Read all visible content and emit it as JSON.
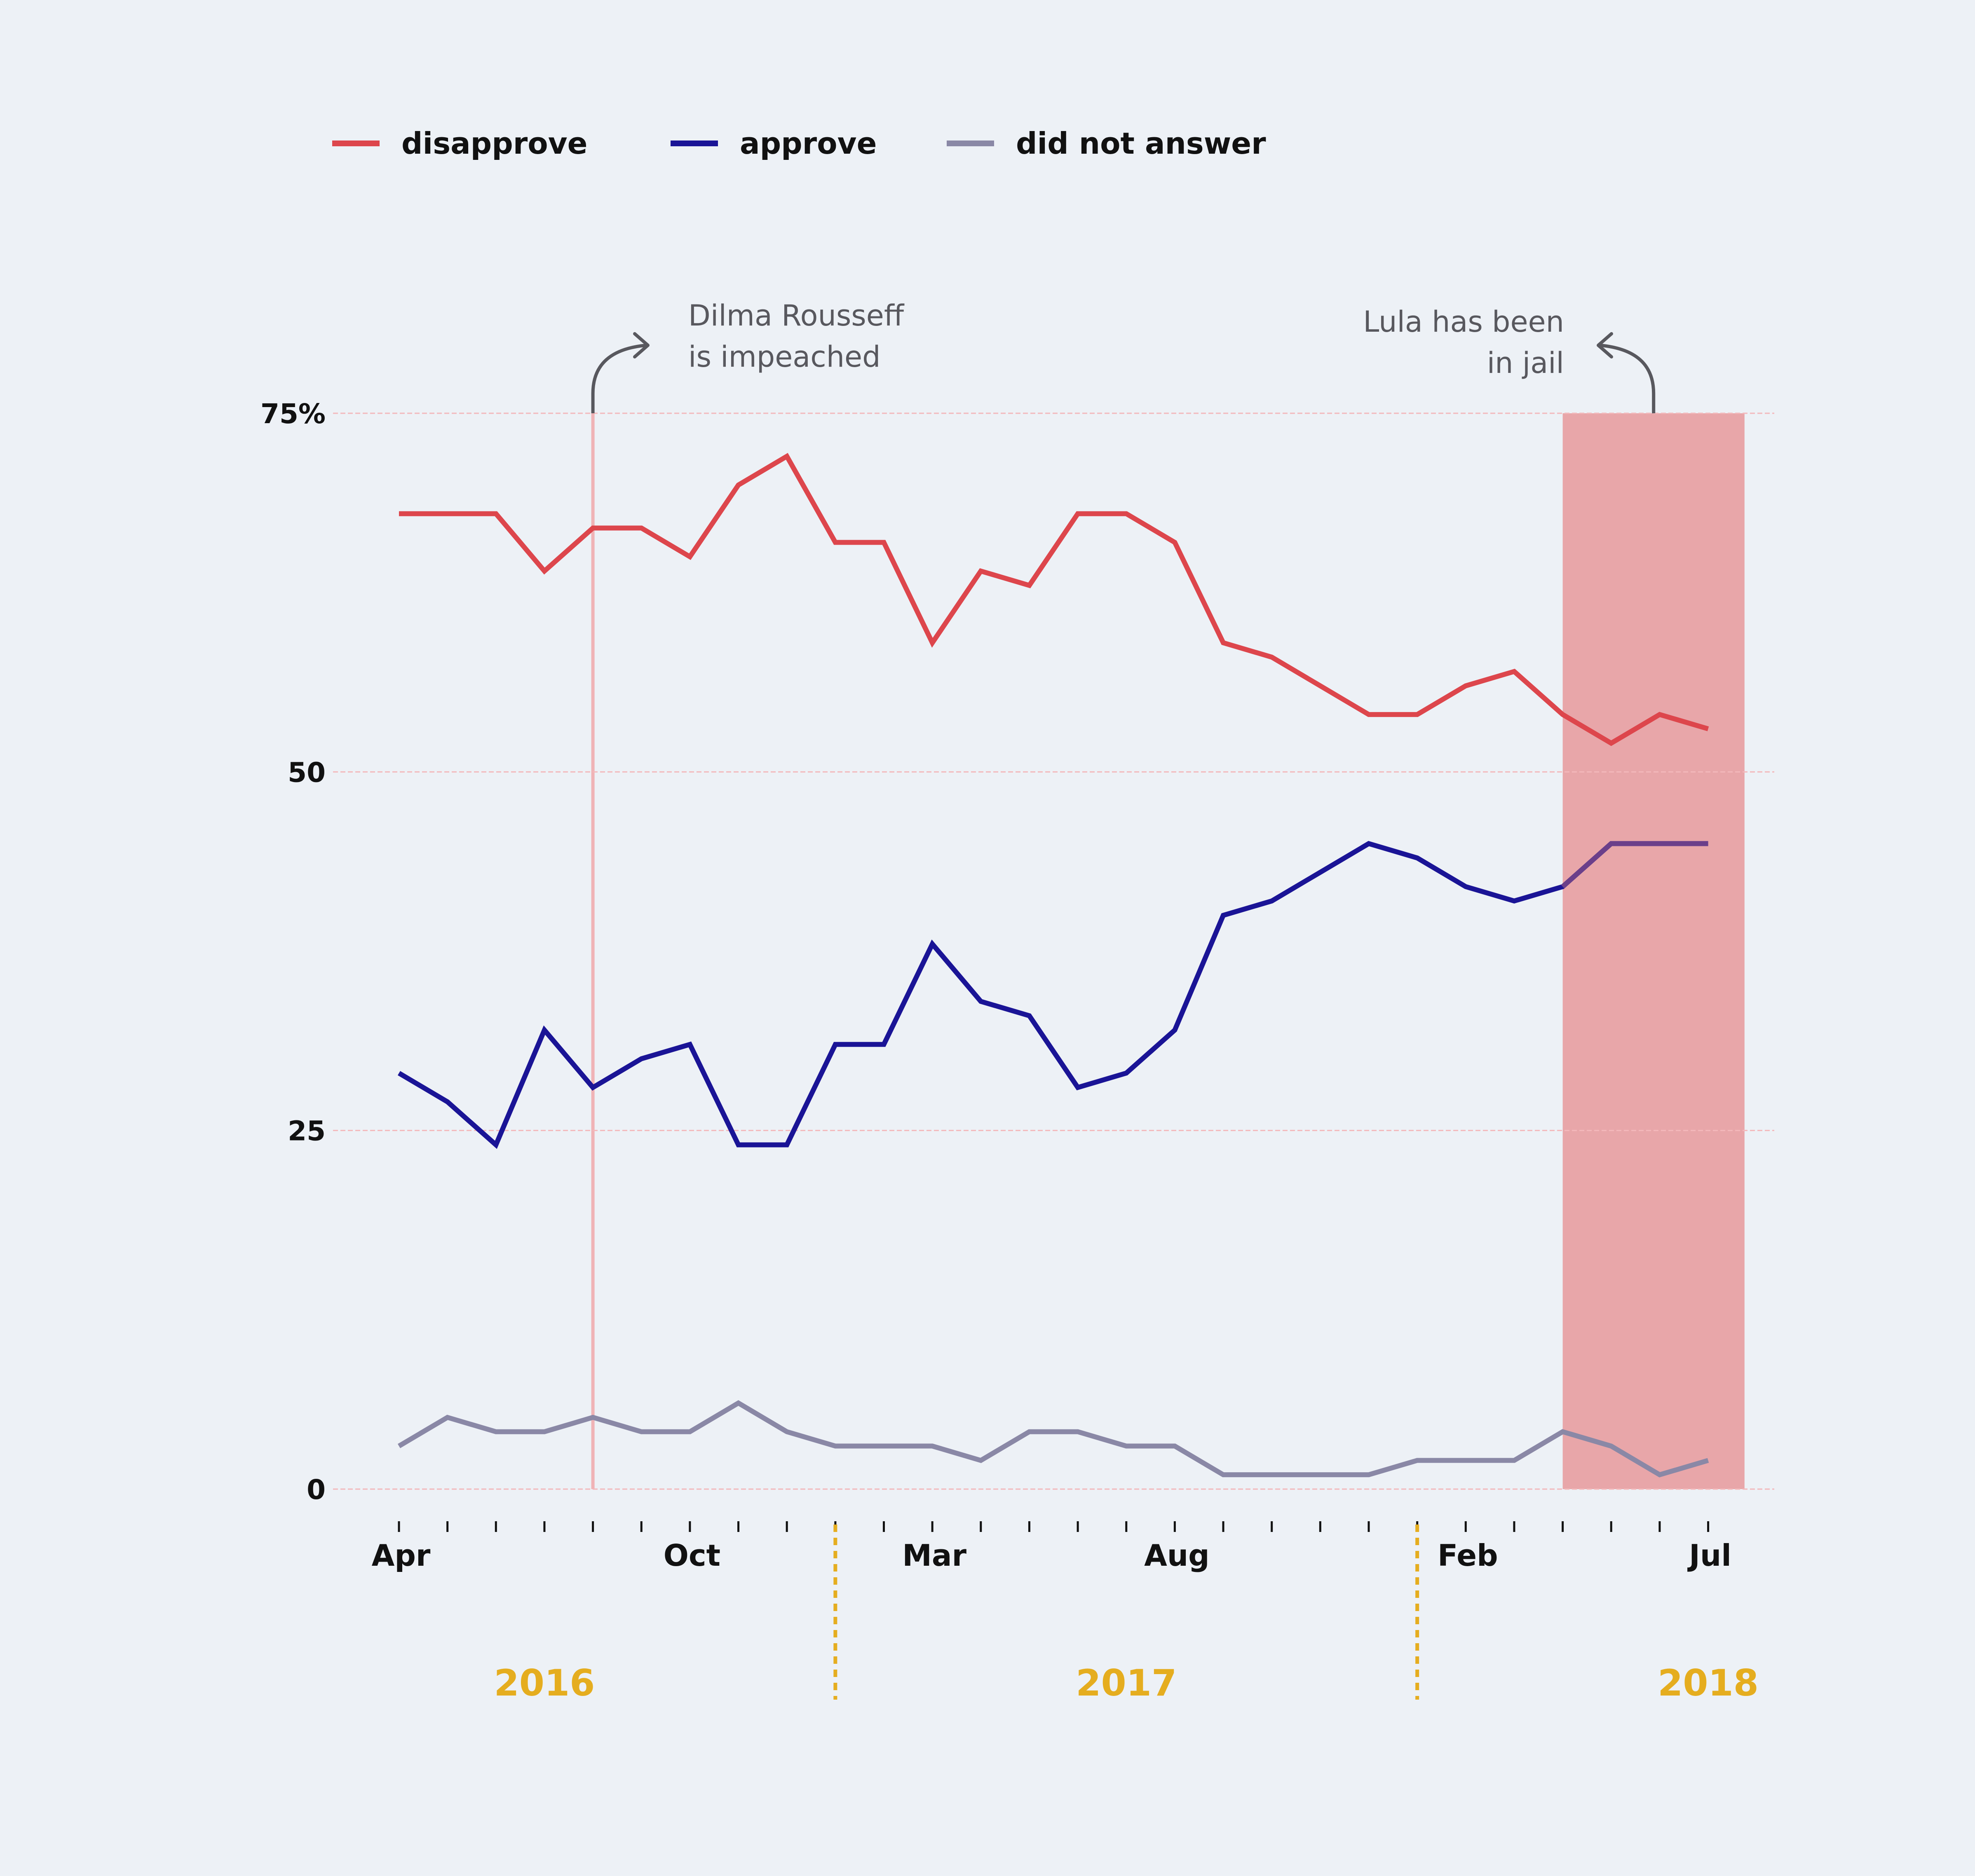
{
  "colors": {
    "background": "#edf1f6",
    "disapprove": "#dd464c",
    "approve": "#1a1496",
    "did_not_answer": "#8a88a6",
    "approve_in_band": "#6b3f8a",
    "highlight_band": "#e8a6a9",
    "event_line": "#f0b3b6",
    "grid": "#f3b8bb",
    "year": "#e5ad1f",
    "annotation": "#58585e"
  },
  "legend": [
    {
      "key": "disapprove",
      "label": "disapprove"
    },
    {
      "key": "approve",
      "label": "approve"
    },
    {
      "key": "did_not_answer",
      "label": "did not answer"
    }
  ],
  "annotations": {
    "impeachment": {
      "lines": [
        "Dilma Rousseff",
        "is impeached"
      ],
      "x_index": 4
    },
    "jail": {
      "lines": [
        "Lula has been",
        "in jail"
      ],
      "band_start_index": 24,
      "band_end_index": 27.75
    }
  },
  "chart_data": {
    "type": "line",
    "x": [
      "Apr 2016",
      "",
      "",
      "",
      "",
      "",
      "Oct 2016",
      "",
      "",
      "",
      "",
      "Mar 2017",
      "",
      "",
      "",
      "",
      "Aug 2017",
      "",
      "",
      "",
      "",
      "",
      "Feb 2018",
      "",
      "",
      "",
      "",
      "Jul 2018"
    ],
    "x_tick_labels": [
      {
        "index": 0,
        "label": "Apr"
      },
      {
        "index": 6,
        "label": "Oct"
      },
      {
        "index": 11,
        "label": "Mar"
      },
      {
        "index": 16,
        "label": "Aug"
      },
      {
        "index": 22,
        "label": "Feb"
      },
      {
        "index": 27,
        "label": "Jul"
      }
    ],
    "years": [
      {
        "label": "2016",
        "center_index": 3
      },
      {
        "label": "2017",
        "center_index": 15
      },
      {
        "label": "2018",
        "center_index": 27
      }
    ],
    "year_dividers": [
      9,
      21
    ],
    "y_ticks": [
      {
        "value": 0,
        "label": "0"
      },
      {
        "value": 25,
        "label": "25"
      },
      {
        "value": 50,
        "label": "50"
      },
      {
        "value": 75,
        "label": "75%"
      }
    ],
    "ylim": [
      0,
      75
    ],
    "grid": true,
    "legend_position": "top-left",
    "series": [
      {
        "name": "disapprove",
        "key": "disapprove",
        "values": [
          68,
          68,
          68,
          64,
          67,
          67,
          65,
          70,
          72,
          66,
          66,
          59,
          64,
          63,
          68,
          68,
          66,
          59,
          58,
          56,
          54,
          54,
          56,
          57,
          54,
          52,
          54,
          53
        ]
      },
      {
        "name": "approve",
        "key": "approve",
        "values": [
          29,
          27,
          24,
          32,
          28,
          30,
          31,
          24,
          24,
          31,
          31,
          38,
          34,
          33,
          28,
          29,
          32,
          40,
          41,
          43,
          45,
          44,
          42,
          41,
          42,
          45,
          45,
          45
        ]
      },
      {
        "name": "did not answer",
        "key": "did_not_answer",
        "values": [
          3,
          5,
          4,
          4,
          5,
          4,
          4,
          6,
          4,
          3,
          3,
          3,
          2,
          4,
          4,
          3,
          3,
          1,
          1,
          1,
          1,
          2,
          2,
          2,
          4,
          3,
          1,
          2
        ]
      }
    ]
  }
}
